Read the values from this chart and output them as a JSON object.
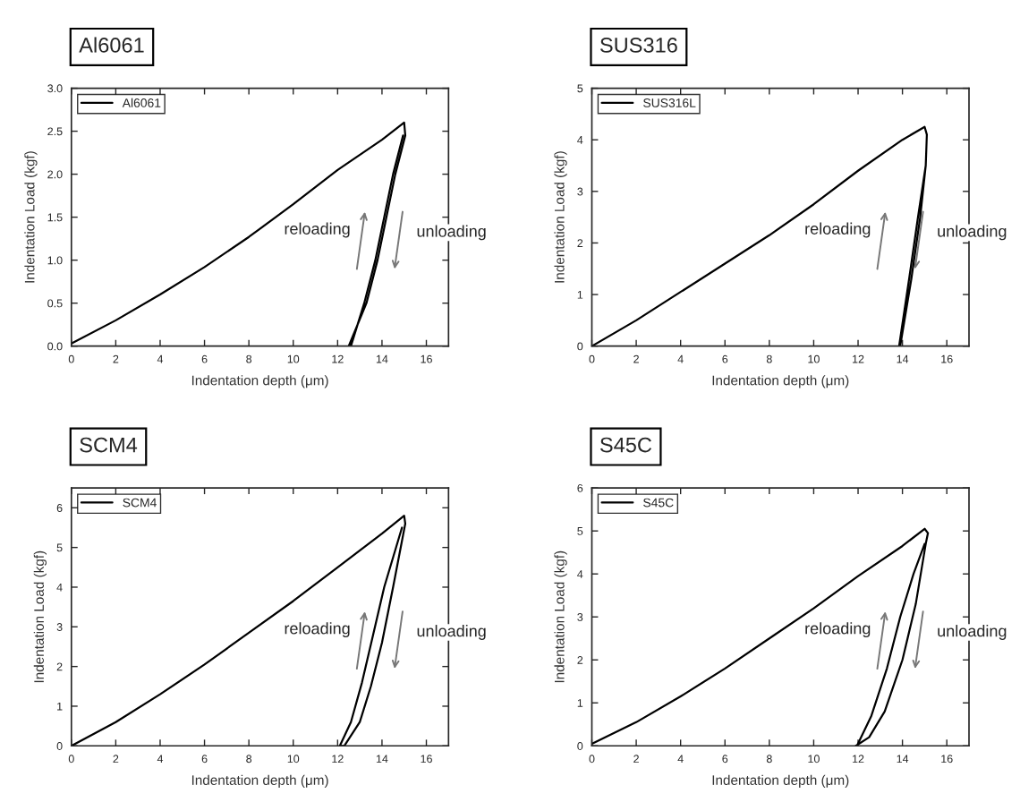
{
  "chart_data": [
    {
      "type": "line",
      "title": "Al6061",
      "xlabel": "Indentation depth (μm)",
      "ylabel": "Indentation Load (kgf)",
      "xlim": [
        0,
        17
      ],
      "xticks": [
        0,
        2,
        4,
        6,
        8,
        10,
        12,
        14,
        16
      ],
      "ylim": [
        0,
        3.0
      ],
      "yticks": [
        {
          "value": 0,
          "label": "0.0"
        },
        {
          "value": 0.5,
          "label": "0.5"
        },
        {
          "value": 1.0,
          "label": "1.0"
        },
        {
          "value": 1.5,
          "label": "1.5"
        },
        {
          "value": 2.0,
          "label": "2.0"
        },
        {
          "value": 2.5,
          "label": "2.5"
        },
        {
          "value": 3.0,
          "label": "3.0"
        }
      ],
      "legend": "top left",
      "grid": false,
      "annotations": [
        "reloading",
        "unloading"
      ],
      "series": [
        {
          "name": "Al6061",
          "color": "#000000",
          "x": [
            0,
            2,
            4,
            6,
            8,
            10,
            12,
            14,
            15,
            15.05,
            14.6,
            14.2,
            13.8,
            13.3,
            12.5,
            12.6,
            13.2,
            13.7,
            14.1,
            14.5,
            14.95
          ],
          "values": [
            0.03,
            0.3,
            0.6,
            0.92,
            1.27,
            1.65,
            2.05,
            2.4,
            2.6,
            2.45,
            2.0,
            1.5,
            1.0,
            0.5,
            0,
            0,
            0.5,
            1.0,
            1.5,
            2.0,
            2.45
          ]
        }
      ]
    },
    {
      "type": "line",
      "title": "SUS316",
      "xlabel": "Indentation depth (μm)",
      "ylabel": "Indentation Load (kgf)",
      "xlim": [
        0,
        17
      ],
      "xticks": [
        0,
        2,
        4,
        6,
        8,
        10,
        12,
        14,
        16
      ],
      "ylim": [
        0,
        5
      ],
      "yticks": [
        0,
        1,
        2,
        3,
        4,
        5
      ],
      "legend": "top left",
      "grid": false,
      "annotations": [
        "reloading",
        "unloading"
      ],
      "series": [
        {
          "name": "SUS316L",
          "color": "#000000",
          "x": [
            0,
            2,
            4,
            6,
            8,
            10,
            12,
            14,
            15,
            15.1,
            15.05,
            14.7,
            14.3,
            13.85,
            13.9,
            14.4,
            14.8,
            15.05
          ],
          "values": [
            0,
            0.5,
            1.05,
            1.6,
            2.15,
            2.75,
            3.4,
            4.0,
            4.25,
            4.1,
            3.5,
            2.5,
            1.3,
            0,
            0,
            1.3,
            2.5,
            3.5
          ]
        }
      ]
    },
    {
      "type": "line",
      "title": "SCM4",
      "xlabel": "Indentation depth (μm)",
      "ylabel": "Indentation Load (kgf)",
      "xlim": [
        0,
        17
      ],
      "xticks": [
        0,
        2,
        4,
        6,
        8,
        10,
        12,
        14,
        16
      ],
      "ylim": [
        0,
        6.5
      ],
      "yticks": [
        0,
        1,
        2,
        3,
        4,
        5,
        6
      ],
      "legend": "top left",
      "grid": false,
      "annotations": [
        "reloading",
        "unloading"
      ],
      "series": [
        {
          "name": "SCM4",
          "color": "#000000",
          "x": [
            0,
            2,
            4,
            6,
            8,
            10,
            12,
            14,
            15,
            15.05,
            14.5,
            14,
            13.5,
            13,
            12.3,
            12.1,
            12.6,
            13.1,
            13.6,
            14.1,
            14.9
          ],
          "values": [
            0,
            0.6,
            1.3,
            2.05,
            2.85,
            3.65,
            4.5,
            5.35,
            5.8,
            5.6,
            4.0,
            2.6,
            1.5,
            0.6,
            0,
            0,
            0.6,
            1.6,
            2.8,
            4.0,
            5.5
          ]
        }
      ]
    },
    {
      "type": "line",
      "title": "S45C",
      "xlabel": "Indentation depth (μm)",
      "ylabel": "Indentation Load (kgf)",
      "xlim": [
        0,
        17
      ],
      "xticks": [
        0,
        2,
        4,
        6,
        8,
        10,
        12,
        14,
        16
      ],
      "ylim": [
        0,
        6
      ],
      "yticks": [
        0,
        1,
        2,
        3,
        4,
        5,
        6
      ],
      "legend": "top left",
      "grid": false,
      "annotations": [
        "reloading",
        "unloading"
      ],
      "series": [
        {
          "name": "S45C",
          "color": "#000000",
          "x": [
            0,
            2,
            4,
            6,
            8,
            10,
            12,
            14,
            15,
            15.15,
            15.05,
            14.6,
            14,
            13.2,
            12.5,
            11.9,
            11.95,
            12.6,
            13.3,
            13.9,
            14.5,
            15.0
          ],
          "values": [
            0.05,
            0.55,
            1.15,
            1.8,
            2.5,
            3.2,
            3.95,
            4.65,
            5.05,
            4.95,
            4.7,
            3.3,
            2.0,
            0.8,
            0.2,
            0,
            0,
            0.7,
            1.8,
            3.0,
            4.0,
            4.7
          ]
        }
      ]
    }
  ]
}
